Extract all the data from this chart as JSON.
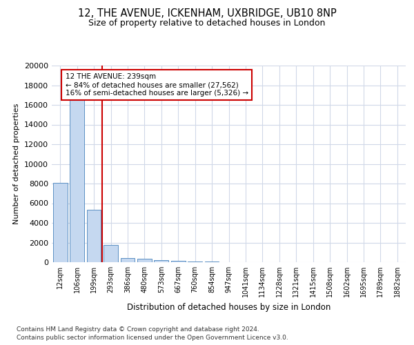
{
  "title_line1": "12, THE AVENUE, ICKENHAM, UXBRIDGE, UB10 8NP",
  "title_line2": "Size of property relative to detached houses in London",
  "xlabel": "Distribution of detached houses by size in London",
  "ylabel": "Number of detached properties",
  "categories": [
    "12sqm",
    "106sqm",
    "199sqm",
    "293sqm",
    "386sqm",
    "480sqm",
    "573sqm",
    "667sqm",
    "760sqm",
    "854sqm",
    "947sqm",
    "1041sqm",
    "1134sqm",
    "1228sqm",
    "1321sqm",
    "1415sqm",
    "1508sqm",
    "1602sqm",
    "1695sqm",
    "1789sqm",
    "1882sqm"
  ],
  "values": [
    8050,
    16600,
    5300,
    1750,
    450,
    330,
    200,
    160,
    90,
    60,
    0,
    0,
    0,
    0,
    0,
    0,
    0,
    0,
    0,
    0,
    0
  ],
  "bar_color": "#c5d8f0",
  "bar_edge_color": "#5a8fc3",
  "highlight_line_color": "#cc0000",
  "annotation_text": "12 THE AVENUE: 239sqm\n← 84% of detached houses are smaller (27,562)\n16% of semi-detached houses are larger (5,326) →",
  "annotation_box_color": "#ffffff",
  "annotation_box_edge_color": "#cc0000",
  "footnote_line1": "Contains HM Land Registry data © Crown copyright and database right 2024.",
  "footnote_line2": "Contains public sector information licensed under the Open Government Licence v3.0.",
  "background_color": "#ffffff",
  "grid_color": "#d0d8e8",
  "ylim": [
    0,
    20000
  ],
  "yticks": [
    0,
    2000,
    4000,
    6000,
    8000,
    10000,
    12000,
    14000,
    16000,
    18000,
    20000
  ]
}
